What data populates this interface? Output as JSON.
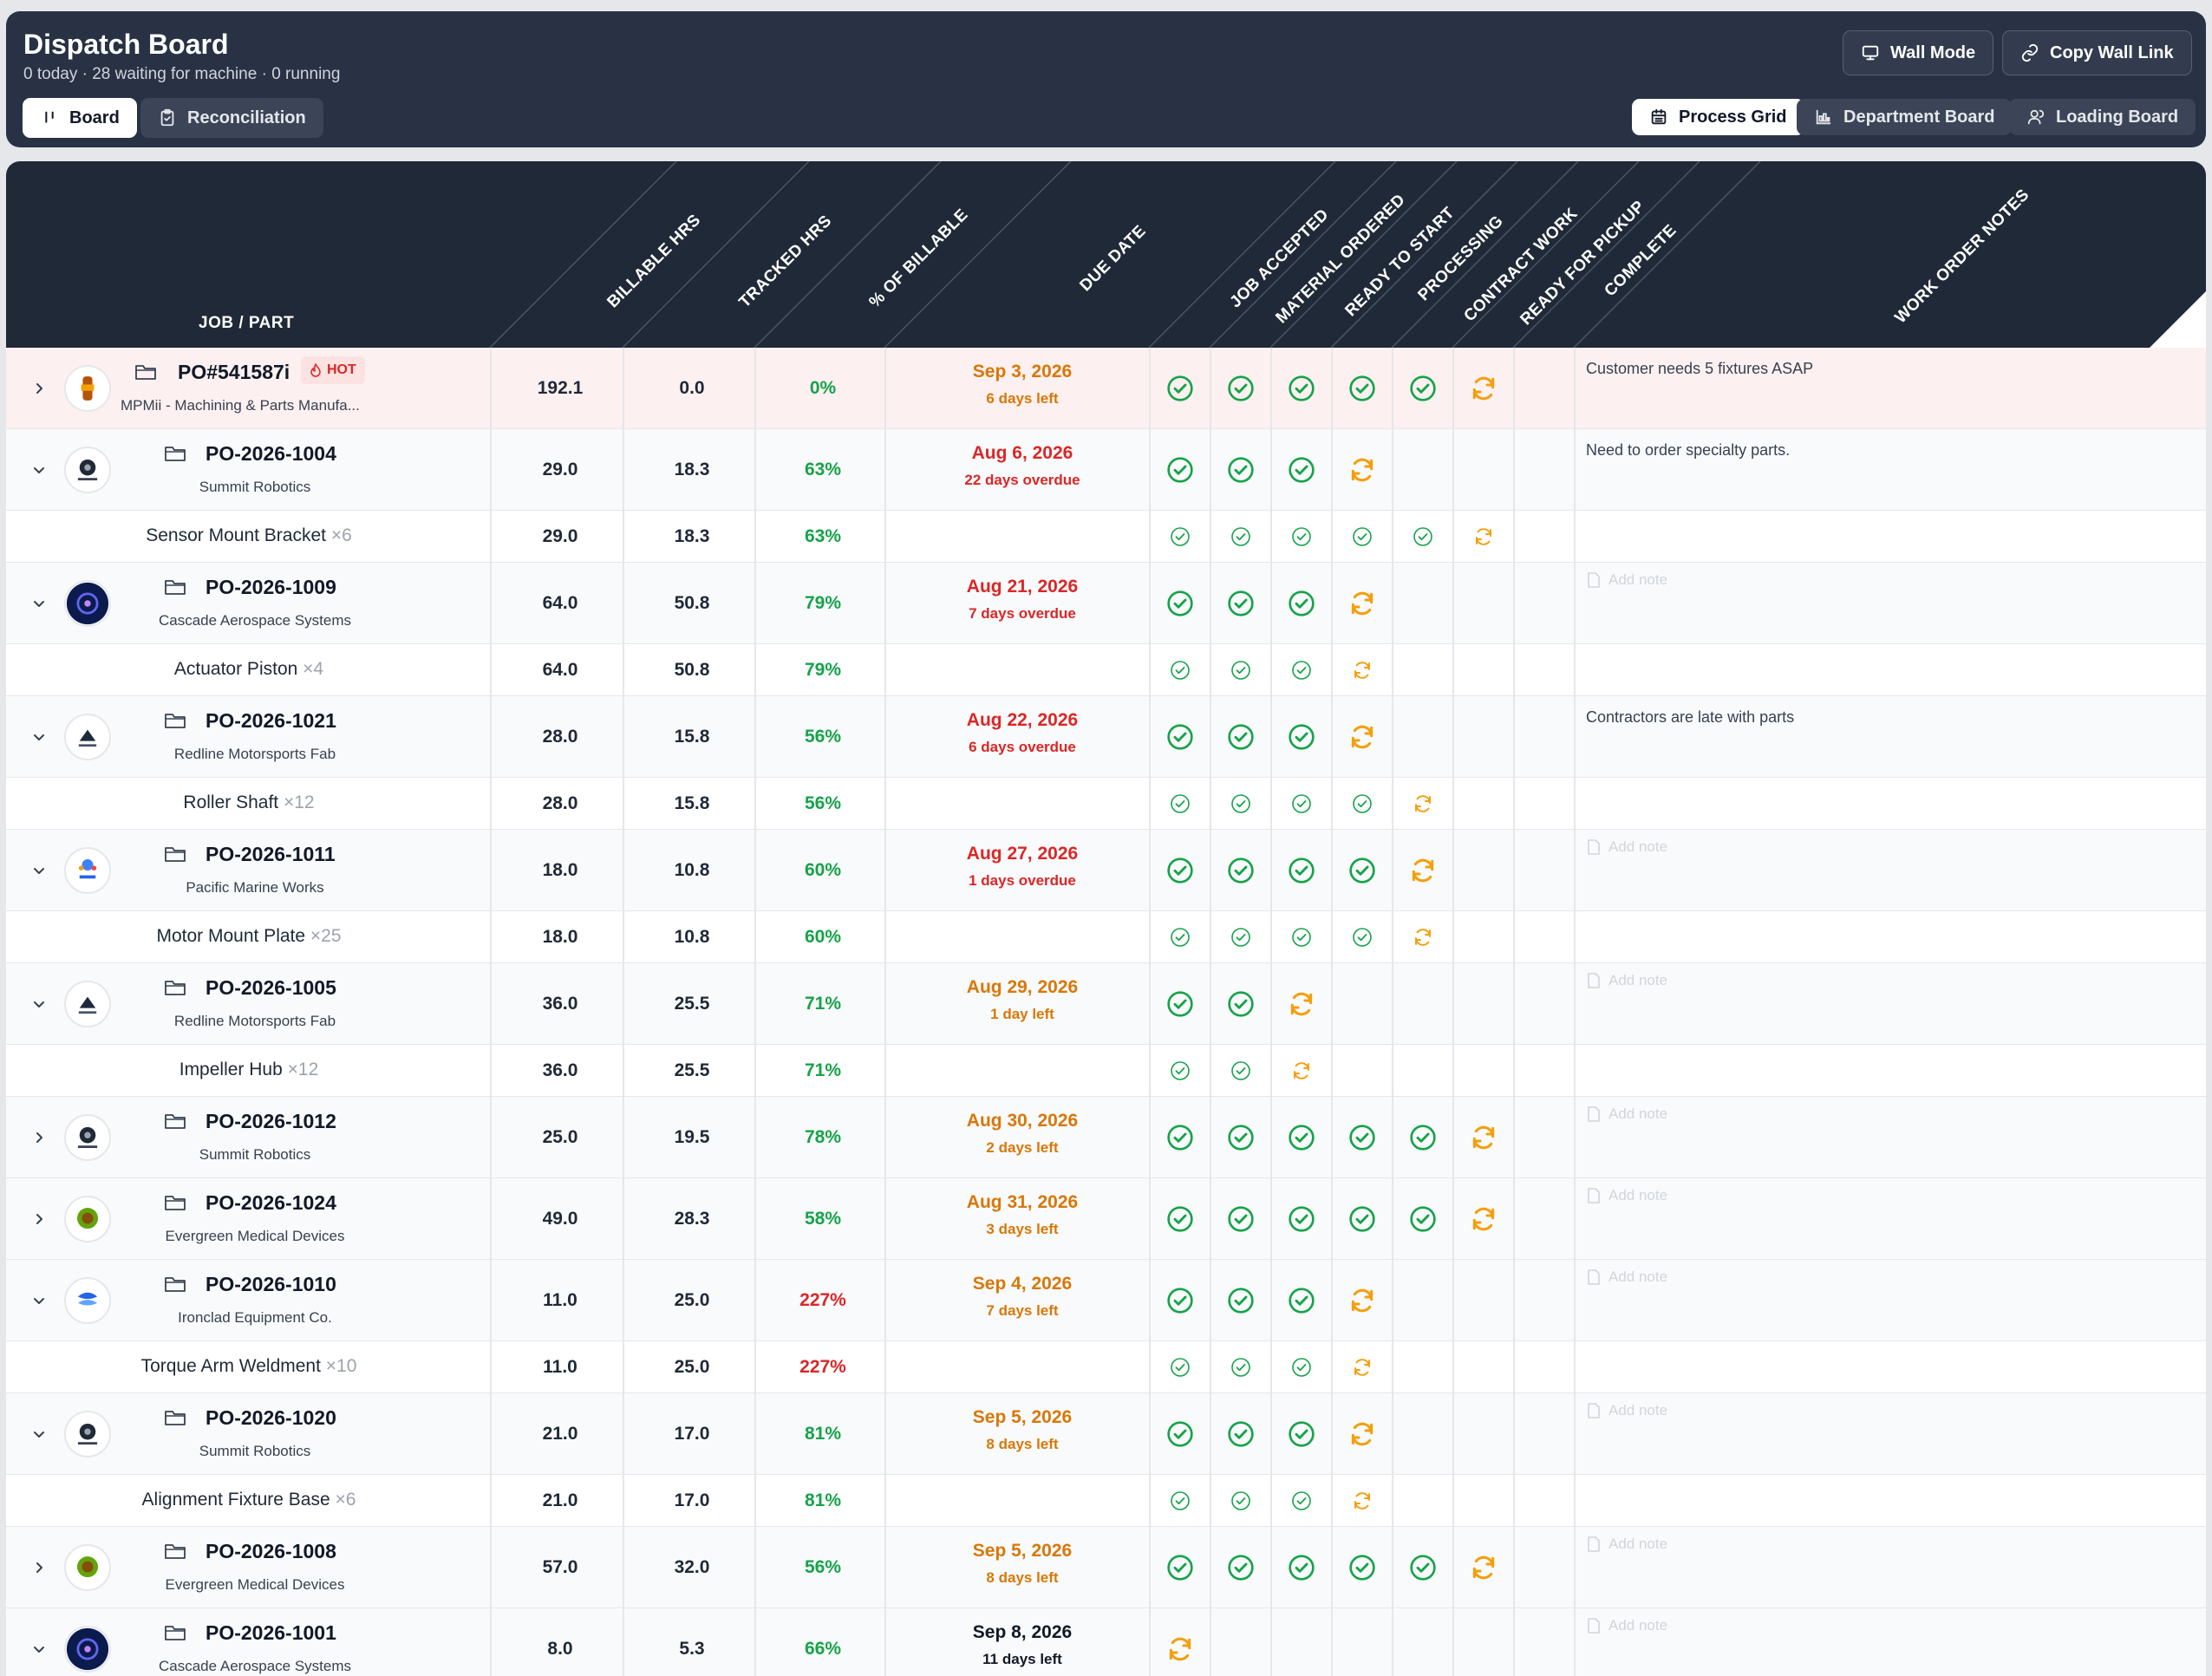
{
  "header": {
    "title": "Dispatch Board",
    "subtitle": "0 today · 28 waiting for machine · 0 running",
    "tabs": [
      {
        "label": "Board",
        "icon": "kanban-icon",
        "active": true
      },
      {
        "label": "Reconciliation",
        "icon": "clipboard-check-icon",
        "active": false
      }
    ],
    "actions": [
      {
        "label": "Wall Mode",
        "icon": "monitor-icon"
      },
      {
        "label": "Copy Wall Link",
        "icon": "link-icon"
      }
    ],
    "views": [
      {
        "label": "Process Grid",
        "icon": "calendar-grid-icon",
        "active": true
      },
      {
        "label": "Department Board",
        "icon": "bar-chart-icon",
        "active": false
      },
      {
        "label": "Loading Board",
        "icon": "users-icon",
        "active": false
      }
    ]
  },
  "columns": {
    "job": "JOB / PART",
    "billable": "BILLABLE HRS",
    "tracked": "TRACKED HRS",
    "pct": "% OF BILLABLE",
    "due": "DUE DATE",
    "stages": [
      "JOB ACCEPTED",
      "MATERIAL ORDERED",
      "READY TO START",
      "PROCESSING",
      "CONTRACT WORK",
      "READY FOR PICKUP",
      "COMPLETE"
    ],
    "notes": "WORK ORDER NOTES"
  },
  "status_legend": {
    "done": "check-circle-icon",
    "in_progress": "refresh-icon"
  },
  "colors": {
    "header_bg": "#283244",
    "grid_header_bg": "#1f2937",
    "done": "#16a34a",
    "in_progress": "#f59e0b",
    "overdue": "#dc2626",
    "hot_row": "#fdf0f0"
  },
  "add_note_label": "Add note",
  "rows": [
    {
      "type": "parent",
      "expanded": false,
      "hot": true,
      "hot_label": "HOT",
      "po": "PO#541587i",
      "customer": "MPMii - Machining & Parts Manufa...",
      "billable": "192.1",
      "tracked": "0.0",
      "pct": "0%",
      "pct_color": "green",
      "due": "Sep 3, 2026",
      "due_sub": "6 days left",
      "due_color": "amber",
      "stages": [
        "done",
        "done",
        "done",
        "done",
        "done",
        "progress"
      ],
      "note": "Customer needs 5 fixtures ASAP"
    },
    {
      "type": "parent",
      "expanded": true,
      "po": "PO-2026-1004",
      "customer": "Summit Robotics",
      "billable": "29.0",
      "tracked": "18.3",
      "pct": "63%",
      "pct_color": "green",
      "due": "Aug 6, 2026",
      "due_sub": "22 days overdue",
      "due_color": "red",
      "stages": [
        "done",
        "done",
        "done",
        "progress"
      ],
      "note": "Need to order specialty parts."
    },
    {
      "type": "child",
      "name": "Sensor Mount Bracket",
      "qty": "×6",
      "billable": "29.0",
      "tracked": "18.3",
      "pct": "63%",
      "pct_color": "green",
      "stages": [
        "done",
        "done",
        "done",
        "done",
        "done",
        "progress"
      ]
    },
    {
      "type": "parent",
      "expanded": true,
      "po": "PO-2026-1009",
      "customer": "Cascade Aerospace Systems",
      "billable": "64.0",
      "tracked": "50.8",
      "pct": "79%",
      "pct_color": "green",
      "due": "Aug 21, 2026",
      "due_sub": "7 days overdue",
      "due_color": "red",
      "stages": [
        "done",
        "done",
        "done",
        "progress"
      ],
      "note": ""
    },
    {
      "type": "child",
      "name": "Actuator Piston",
      "qty": "×4",
      "billable": "64.0",
      "tracked": "50.8",
      "pct": "79%",
      "pct_color": "green",
      "stages": [
        "done",
        "done",
        "done",
        "progress"
      ]
    },
    {
      "type": "parent",
      "expanded": true,
      "po": "PO-2026-1021",
      "customer": "Redline Motorsports Fab",
      "billable": "28.0",
      "tracked": "15.8",
      "pct": "56%",
      "pct_color": "green",
      "due": "Aug 22, 2026",
      "due_sub": "6 days overdue",
      "due_color": "red",
      "stages": [
        "done",
        "done",
        "done",
        "progress"
      ],
      "note": "Contractors are late with parts"
    },
    {
      "type": "child",
      "name": "Roller Shaft",
      "qty": "×12",
      "billable": "28.0",
      "tracked": "15.8",
      "pct": "56%",
      "pct_color": "green",
      "stages": [
        "done",
        "done",
        "done",
        "done",
        "progress"
      ]
    },
    {
      "type": "parent",
      "expanded": true,
      "po": "PO-2026-1011",
      "customer": "Pacific Marine Works",
      "billable": "18.0",
      "tracked": "10.8",
      "pct": "60%",
      "pct_color": "green",
      "due": "Aug 27, 2026",
      "due_sub": "1 days overdue",
      "due_color": "red",
      "stages": [
        "done",
        "done",
        "done",
        "done",
        "progress"
      ],
      "note": ""
    },
    {
      "type": "child",
      "name": "Motor Mount Plate",
      "qty": "×25",
      "billable": "18.0",
      "tracked": "10.8",
      "pct": "60%",
      "pct_color": "green",
      "stages": [
        "done",
        "done",
        "done",
        "done",
        "progress"
      ]
    },
    {
      "type": "parent",
      "expanded": true,
      "po": "PO-2026-1005",
      "customer": "Redline Motorsports Fab",
      "billable": "36.0",
      "tracked": "25.5",
      "pct": "71%",
      "pct_color": "green",
      "due": "Aug 29, 2026",
      "due_sub": "1 day left",
      "due_color": "amber",
      "stages": [
        "done",
        "done",
        "progress"
      ],
      "note": ""
    },
    {
      "type": "child",
      "name": "Impeller Hub",
      "qty": "×12",
      "billable": "36.0",
      "tracked": "25.5",
      "pct": "71%",
      "pct_color": "green",
      "stages": [
        "done",
        "done",
        "progress"
      ]
    },
    {
      "type": "parent",
      "expanded": false,
      "po": "PO-2026-1012",
      "customer": "Summit Robotics",
      "billable": "25.0",
      "tracked": "19.5",
      "pct": "78%",
      "pct_color": "green",
      "due": "Aug 30, 2026",
      "due_sub": "2 days left",
      "due_color": "amber",
      "stages": [
        "done",
        "done",
        "done",
        "done",
        "done",
        "progress"
      ],
      "note": ""
    },
    {
      "type": "parent",
      "expanded": false,
      "po": "PO-2026-1024",
      "customer": "Evergreen Medical Devices",
      "billable": "49.0",
      "tracked": "28.3",
      "pct": "58%",
      "pct_color": "green",
      "due": "Aug 31, 2026",
      "due_sub": "3 days left",
      "due_color": "amber",
      "stages": [
        "done",
        "done",
        "done",
        "done",
        "done",
        "progress"
      ],
      "note": ""
    },
    {
      "type": "parent",
      "expanded": true,
      "po": "PO-2026-1010",
      "customer": "Ironclad Equipment Co.",
      "billable": "11.0",
      "tracked": "25.0",
      "pct": "227%",
      "pct_color": "red",
      "due": "Sep 4, 2026",
      "due_sub": "7 days left",
      "due_color": "amber",
      "stages": [
        "done",
        "done",
        "done",
        "progress"
      ],
      "note": ""
    },
    {
      "type": "child",
      "name": "Torque Arm Weldment",
      "qty": "×10",
      "billable": "11.0",
      "tracked": "25.0",
      "pct": "227%",
      "pct_color": "red",
      "stages": [
        "done",
        "done",
        "done",
        "progress"
      ]
    },
    {
      "type": "parent",
      "expanded": true,
      "po": "PO-2026-1020",
      "customer": "Summit Robotics",
      "billable": "21.0",
      "tracked": "17.0",
      "pct": "81%",
      "pct_color": "green",
      "due": "Sep 5, 2026",
      "due_sub": "8 days left",
      "due_color": "amber",
      "stages": [
        "done",
        "done",
        "done",
        "progress"
      ],
      "note": ""
    },
    {
      "type": "child",
      "name": "Alignment Fixture Base",
      "qty": "×6",
      "billable": "21.0",
      "tracked": "17.0",
      "pct": "81%",
      "pct_color": "green",
      "stages": [
        "done",
        "done",
        "done",
        "progress"
      ]
    },
    {
      "type": "parent",
      "expanded": false,
      "po": "PO-2026-1008",
      "customer": "Evergreen Medical Devices",
      "billable": "57.0",
      "tracked": "32.0",
      "pct": "56%",
      "pct_color": "green",
      "due": "Sep 5, 2026",
      "due_sub": "8 days left",
      "due_color": "amber",
      "stages": [
        "done",
        "done",
        "done",
        "done",
        "done",
        "progress"
      ],
      "note": ""
    },
    {
      "type": "parent",
      "expanded": true,
      "po": "PO-2026-1001",
      "customer": "Cascade Aerospace Systems",
      "billable": "8.0",
      "tracked": "5.3",
      "pct": "66%",
      "pct_color": "green",
      "due": "Sep 8, 2026",
      "due_sub": "11 days left",
      "due_color": "black",
      "stages": [
        "progress"
      ],
      "note": ""
    }
  ]
}
